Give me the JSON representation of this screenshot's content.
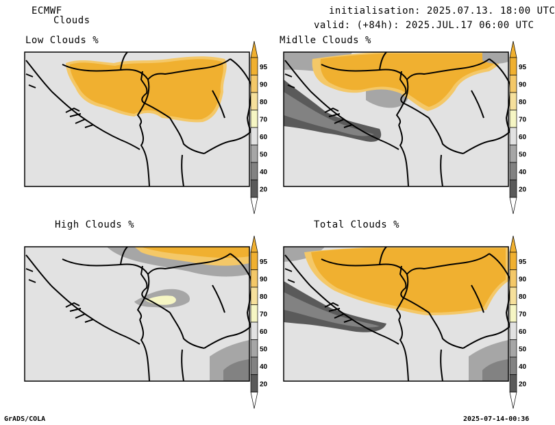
{
  "header": {
    "model": "ECMWF",
    "product": "Clouds",
    "init_line": "initialisation: 2025.07.13. 18:00 UTC",
    "valid_line": "valid: (+84h): 2025.JUL.17 06:00 UTC"
  },
  "panels": [
    {
      "title": "Low Clouds %"
    },
    {
      "title": "Midlle Clouds %"
    },
    {
      "title": "High Clouds %"
    },
    {
      "title": "Total Clouds %"
    }
  ],
  "colorbar": {
    "labels": [
      "95",
      "90",
      "80",
      "70",
      "60",
      "50",
      "40",
      "20"
    ],
    "colors": {
      "c95": "#f0b030",
      "c90": "#f4c868",
      "c80": "#f6e09c",
      "c70": "#f6f6c4",
      "c60": "#e2e2e2",
      "c50": "#a6a6a6",
      "c40": "#828282",
      "c20": "#5a5a5a"
    }
  },
  "footer": {
    "left": "GrADS/COLA",
    "right": "2025-07-14-00:36"
  }
}
